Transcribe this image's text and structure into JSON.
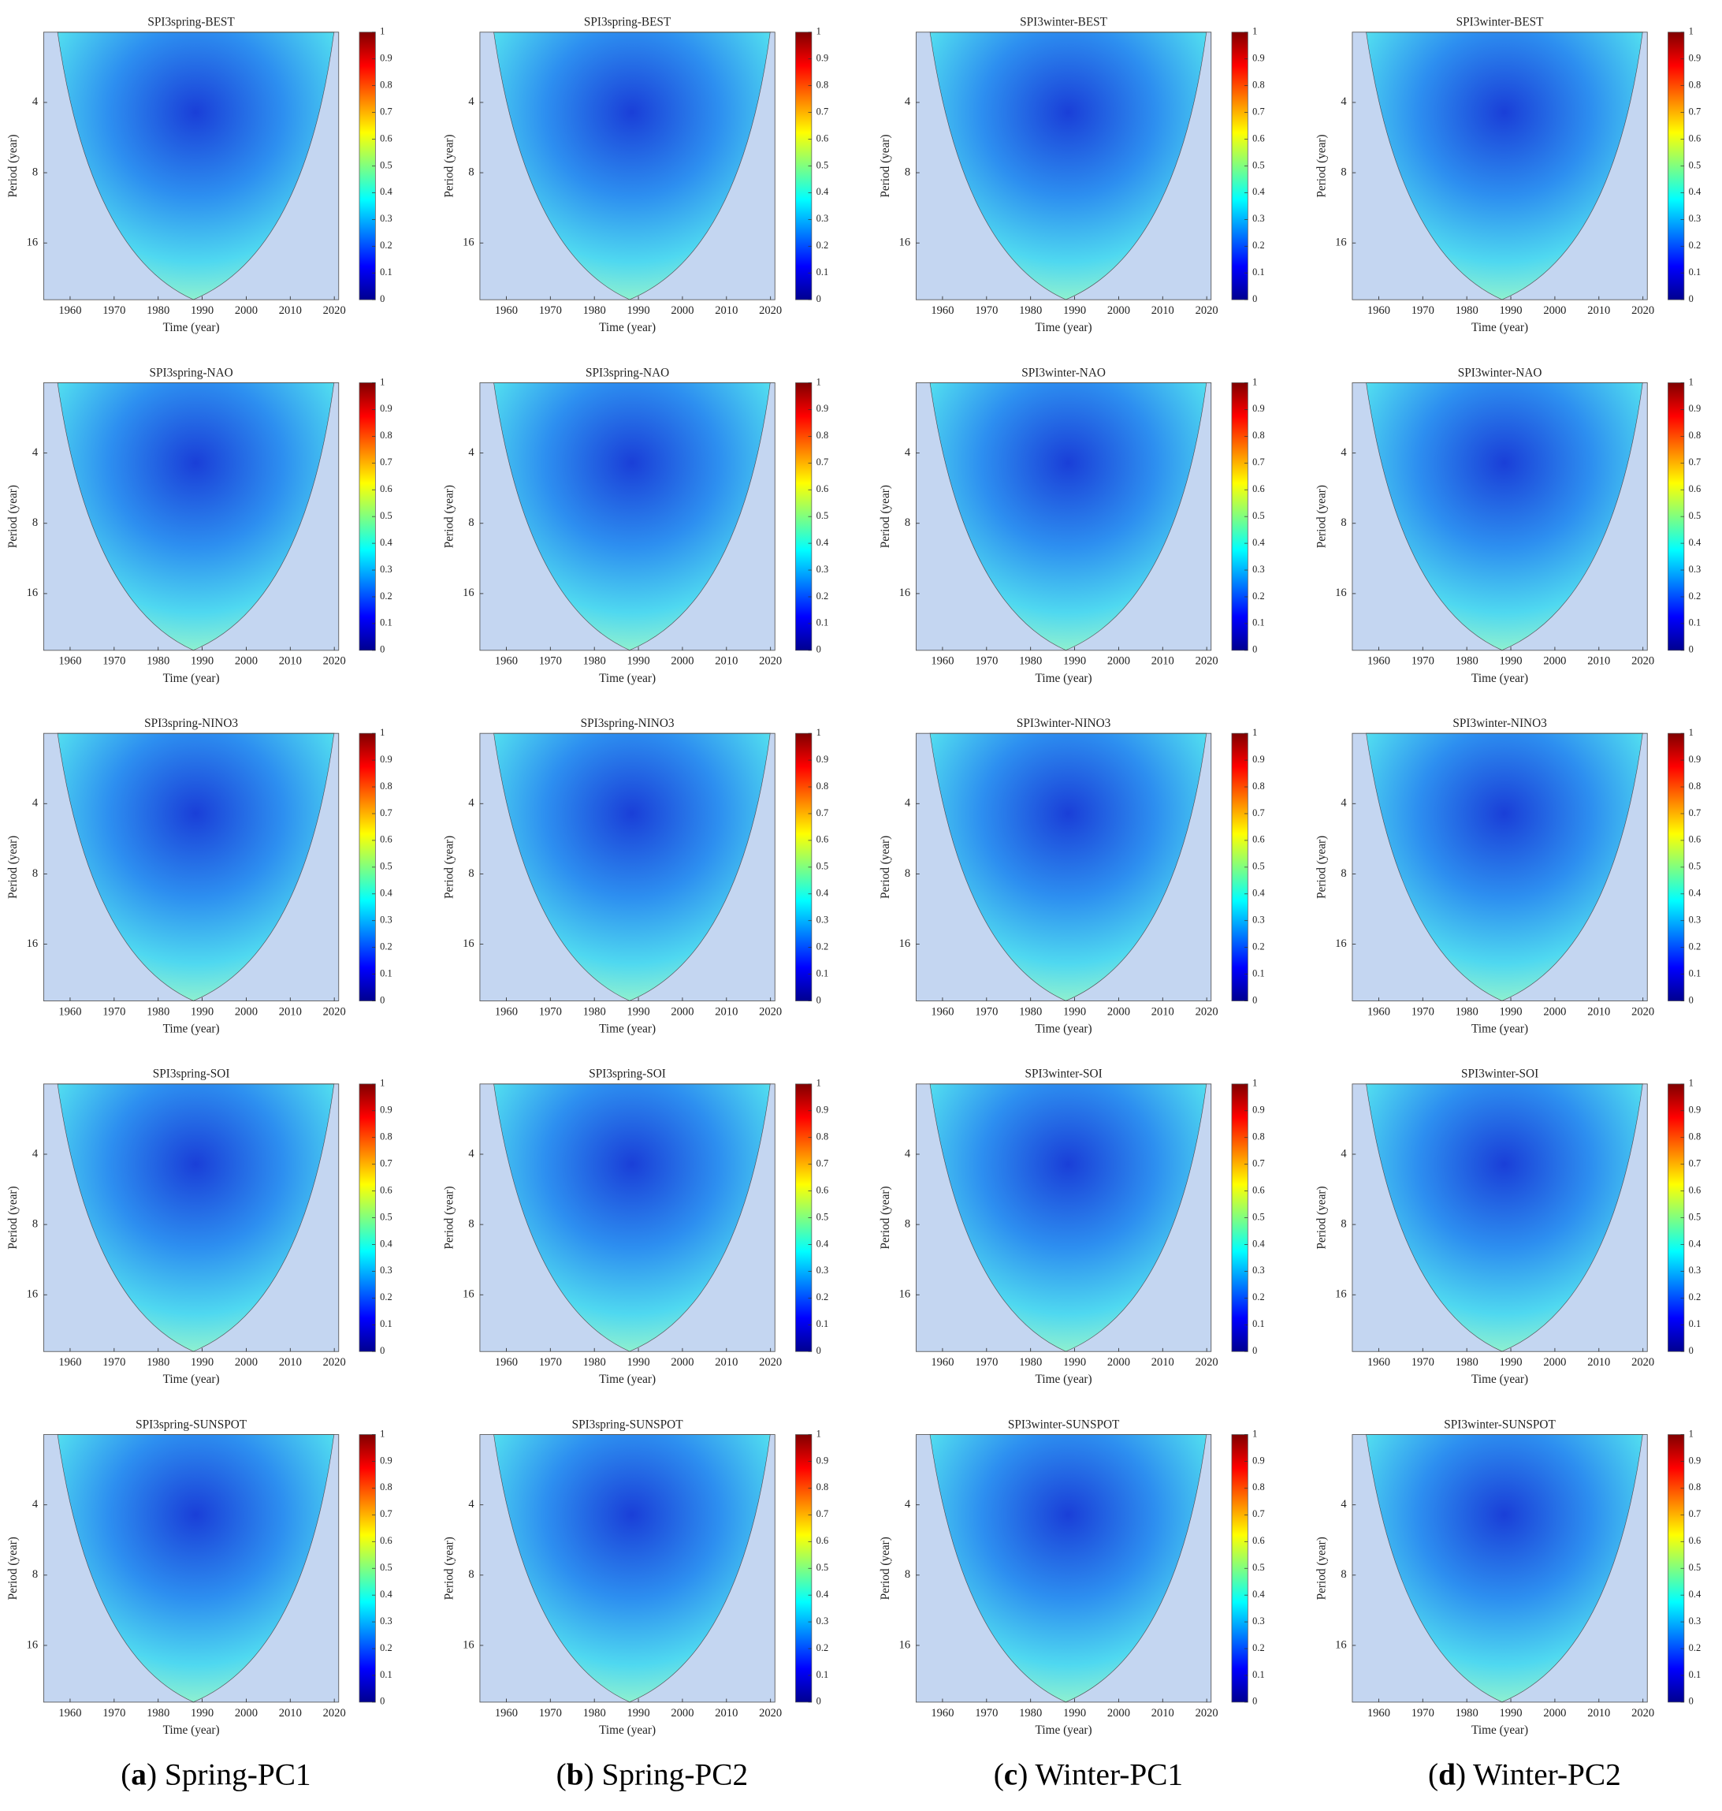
{
  "chart_data": [
    {
      "type": "heatmap",
      "title": "SPI3spring-BEST",
      "xlabel": "Time (year)",
      "ylabel": "Period (year)",
      "xlim": [
        1954,
        2021
      ],
      "xticks": [
        1960,
        1970,
        1980,
        1990,
        2000,
        2010,
        2020
      ],
      "ylim": [
        2,
        28
      ],
      "yticks": [
        4,
        8,
        16
      ],
      "y_log": true,
      "y_reversed": true,
      "colorbar_lim": [
        0,
        1
      ],
      "colorbar_ticks": [
        0,
        0.1,
        0.2,
        0.3,
        0.4,
        0.5,
        0.6,
        0.7,
        0.8,
        0.9,
        1
      ]
    },
    {
      "type": "heatmap",
      "title": "SPI3spring-NAO",
      "xlabel": "Time (year)",
      "ylabel": "Period (year)",
      "xlim": [
        1954,
        2021
      ],
      "xticks": [
        1960,
        1970,
        1980,
        1990,
        2000,
        2010,
        2020
      ],
      "ylim": [
        2,
        28
      ],
      "yticks": [
        4,
        8,
        16
      ],
      "y_log": true,
      "y_reversed": true,
      "colorbar_lim": [
        0,
        1
      ],
      "colorbar_ticks": [
        0,
        0.1,
        0.2,
        0.3,
        0.4,
        0.5,
        0.6,
        0.7,
        0.8,
        0.9,
        1
      ]
    },
    {
      "type": "heatmap",
      "title": "SPI3spring-NINO3",
      "xlabel": "Time (year)",
      "ylabel": "Period (year)",
      "xlim": [
        1954,
        2021
      ],
      "xticks": [
        1960,
        1970,
        1980,
        1990,
        2000,
        2010,
        2020
      ],
      "ylim": [
        2,
        28
      ],
      "yticks": [
        4,
        8,
        16
      ],
      "y_log": true,
      "y_reversed": true,
      "colorbar_lim": [
        0,
        1
      ],
      "colorbar_ticks": [
        0,
        0.1,
        0.2,
        0.3,
        0.4,
        0.5,
        0.6,
        0.7,
        0.8,
        0.9,
        1
      ]
    },
    {
      "type": "heatmap",
      "title": "SPI3spring-SOI",
      "xlabel": "Time (year)",
      "ylabel": "Period (year)",
      "xlim": [
        1954,
        2021
      ],
      "xticks": [
        1960,
        1970,
        1980,
        1990,
        2000,
        2010,
        2020
      ],
      "ylim": [
        2,
        28
      ],
      "yticks": [
        4,
        8,
        16
      ],
      "y_log": true,
      "y_reversed": true,
      "colorbar_lim": [
        0,
        1
      ],
      "colorbar_ticks": [
        0,
        0.1,
        0.2,
        0.3,
        0.4,
        0.5,
        0.6,
        0.7,
        0.8,
        0.9,
        1
      ]
    },
    {
      "type": "heatmap",
      "title": "SPI3spring-SUNSPOT",
      "xlabel": "Time (year)",
      "ylabel": "Period (year)",
      "xlim": [
        1954,
        2021
      ],
      "xticks": [
        1960,
        1970,
        1980,
        1990,
        2000,
        2010,
        2020
      ],
      "ylim": [
        2,
        28
      ],
      "yticks": [
        4,
        8,
        16
      ],
      "y_log": true,
      "y_reversed": true,
      "colorbar_lim": [
        0,
        1
      ],
      "colorbar_ticks": [
        0,
        0.1,
        0.2,
        0.3,
        0.4,
        0.5,
        0.6,
        0.7,
        0.8,
        0.9,
        1
      ]
    },
    {
      "type": "heatmap",
      "title": "SPI3spring-BEST",
      "xlabel": "Time (year)",
      "ylabel": "Period (year)",
      "xlim": [
        1954,
        2021
      ],
      "xticks": [
        1960,
        1970,
        1980,
        1990,
        2000,
        2010,
        2020
      ],
      "ylim": [
        2,
        28
      ],
      "yticks": [
        4,
        8,
        16
      ],
      "y_log": true,
      "y_reversed": true,
      "colorbar_lim": [
        0,
        1
      ],
      "colorbar_ticks": [
        0,
        0.1,
        0.2,
        0.3,
        0.4,
        0.5,
        0.6,
        0.7,
        0.8,
        0.9,
        1
      ]
    },
    {
      "type": "heatmap",
      "title": "SPI3spring-NAO",
      "xlabel": "Time (year)",
      "ylabel": "Period (year)",
      "xlim": [
        1954,
        2021
      ],
      "xticks": [
        1960,
        1970,
        1980,
        1990,
        2000,
        2010,
        2020
      ],
      "ylim": [
        2,
        28
      ],
      "yticks": [
        4,
        8,
        16
      ],
      "y_log": true,
      "y_reversed": true,
      "colorbar_lim": [
        0,
        1
      ],
      "colorbar_ticks": [
        0,
        0.1,
        0.2,
        0.3,
        0.4,
        0.5,
        0.6,
        0.7,
        0.8,
        0.9,
        1
      ]
    },
    {
      "type": "heatmap",
      "title": "SPI3spring-NINO3",
      "xlabel": "Time (year)",
      "ylabel": "Period (year)",
      "xlim": [
        1954,
        2021
      ],
      "xticks": [
        1960,
        1970,
        1980,
        1990,
        2000,
        2010,
        2020
      ],
      "ylim": [
        2,
        28
      ],
      "yticks": [
        4,
        8,
        16
      ],
      "y_log": true,
      "y_reversed": true,
      "colorbar_lim": [
        0,
        1
      ],
      "colorbar_ticks": [
        0,
        0.1,
        0.2,
        0.3,
        0.4,
        0.5,
        0.6,
        0.7,
        0.8,
        0.9,
        1
      ]
    },
    {
      "type": "heatmap",
      "title": "SPI3spring-SOI",
      "xlabel": "Time (year)",
      "ylabel": "Period (year)",
      "xlim": [
        1954,
        2021
      ],
      "xticks": [
        1960,
        1970,
        1980,
        1990,
        2000,
        2010,
        2020
      ],
      "ylim": [
        2,
        28
      ],
      "yticks": [
        4,
        8,
        16
      ],
      "y_log": true,
      "y_reversed": true,
      "colorbar_lim": [
        0,
        1
      ],
      "colorbar_ticks": [
        0,
        0.1,
        0.2,
        0.3,
        0.4,
        0.5,
        0.6,
        0.7,
        0.8,
        0.9,
        1
      ]
    },
    {
      "type": "heatmap",
      "title": "SPI3spring-SUNSPOT",
      "xlabel": "Time (year)",
      "ylabel": "Period (year)",
      "xlim": [
        1954,
        2021
      ],
      "xticks": [
        1960,
        1970,
        1980,
        1990,
        2000,
        2010,
        2020
      ],
      "ylim": [
        2,
        28
      ],
      "yticks": [
        4,
        8,
        16
      ],
      "y_log": true,
      "y_reversed": true,
      "colorbar_lim": [
        0,
        1
      ],
      "colorbar_ticks": [
        0,
        0.1,
        0.2,
        0.3,
        0.4,
        0.5,
        0.6,
        0.7,
        0.8,
        0.9,
        1
      ]
    },
    {
      "type": "heatmap",
      "title": "SPI3winter-BEST",
      "xlabel": "Time (year)",
      "ylabel": "Period (year)",
      "xlim": [
        1954,
        2021
      ],
      "xticks": [
        1960,
        1970,
        1980,
        1990,
        2000,
        2010,
        2020
      ],
      "ylim": [
        2,
        28
      ],
      "yticks": [
        4,
        8,
        16
      ],
      "y_log": true,
      "y_reversed": true,
      "colorbar_lim": [
        0,
        1
      ],
      "colorbar_ticks": [
        0,
        0.1,
        0.2,
        0.3,
        0.4,
        0.5,
        0.6,
        0.7,
        0.8,
        0.9,
        1
      ]
    },
    {
      "type": "heatmap",
      "title": "SPI3winter-NAO",
      "xlabel": "Time (year)",
      "ylabel": "Period (year)",
      "xlim": [
        1954,
        2021
      ],
      "xticks": [
        1960,
        1970,
        1980,
        1990,
        2000,
        2010,
        2020
      ],
      "ylim": [
        2,
        28
      ],
      "yticks": [
        4,
        8,
        16
      ],
      "y_log": true,
      "y_reversed": true,
      "colorbar_lim": [
        0,
        1
      ],
      "colorbar_ticks": [
        0,
        0.1,
        0.2,
        0.3,
        0.4,
        0.5,
        0.6,
        0.7,
        0.8,
        0.9,
        1
      ]
    },
    {
      "type": "heatmap",
      "title": "SPI3winter-NINO3",
      "xlabel": "Time (year)",
      "ylabel": "Period (year)",
      "xlim": [
        1954,
        2021
      ],
      "xticks": [
        1960,
        1970,
        1980,
        1990,
        2000,
        2010,
        2020
      ],
      "ylim": [
        2,
        28
      ],
      "yticks": [
        4,
        8,
        16
      ],
      "y_log": true,
      "y_reversed": true,
      "colorbar_lim": [
        0,
        1
      ],
      "colorbar_ticks": [
        0,
        0.1,
        0.2,
        0.3,
        0.4,
        0.5,
        0.6,
        0.7,
        0.8,
        0.9,
        1
      ]
    },
    {
      "type": "heatmap",
      "title": "SPI3winter-SOI",
      "xlabel": "Time (year)",
      "ylabel": "Period (year)",
      "xlim": [
        1954,
        2021
      ],
      "xticks": [
        1960,
        1970,
        1980,
        1990,
        2000,
        2010,
        2020
      ],
      "ylim": [
        2,
        28
      ],
      "yticks": [
        4,
        8,
        16
      ],
      "y_log": true,
      "y_reversed": true,
      "colorbar_lim": [
        0,
        1
      ],
      "colorbar_ticks": [
        0,
        0.1,
        0.2,
        0.3,
        0.4,
        0.5,
        0.6,
        0.7,
        0.8,
        0.9,
        1
      ]
    },
    {
      "type": "heatmap",
      "title": "SPI3winter-SUNSPOT",
      "xlabel": "Time (year)",
      "ylabel": "Period (year)",
      "xlim": [
        1954,
        2021
      ],
      "xticks": [
        1960,
        1970,
        1980,
        1990,
        2000,
        2010,
        2020
      ],
      "ylim": [
        2,
        28
      ],
      "yticks": [
        4,
        8,
        16
      ],
      "y_log": true,
      "y_reversed": true,
      "colorbar_lim": [
        0,
        1
      ],
      "colorbar_ticks": [
        0,
        0.1,
        0.2,
        0.3,
        0.4,
        0.5,
        0.6,
        0.7,
        0.8,
        0.9,
        1
      ]
    },
    {
      "type": "heatmap",
      "title": "SPI3winter-BEST",
      "xlabel": "Time (year)",
      "ylabel": "Period (year)",
      "xlim": [
        1954,
        2021
      ],
      "xticks": [
        1960,
        1970,
        1980,
        1990,
        2000,
        2010,
        2020
      ],
      "ylim": [
        2,
        28
      ],
      "yticks": [
        4,
        8,
        16
      ],
      "y_log": true,
      "y_reversed": true,
      "colorbar_lim": [
        0,
        1
      ],
      "colorbar_ticks": [
        0,
        0.1,
        0.2,
        0.3,
        0.4,
        0.5,
        0.6,
        0.7,
        0.8,
        0.9,
        1
      ]
    },
    {
      "type": "heatmap",
      "title": "SPI3winter-NAO",
      "xlabel": "Time (year)",
      "ylabel": "Period (year)",
      "xlim": [
        1954,
        2021
      ],
      "xticks": [
        1960,
        1970,
        1980,
        1990,
        2000,
        2010,
        2020
      ],
      "ylim": [
        2,
        28
      ],
      "yticks": [
        4,
        8,
        16
      ],
      "y_log": true,
      "y_reversed": true,
      "colorbar_lim": [
        0,
        1
      ],
      "colorbar_ticks": [
        0,
        0.1,
        0.2,
        0.3,
        0.4,
        0.5,
        0.6,
        0.7,
        0.8,
        0.9,
        1
      ]
    },
    {
      "type": "heatmap",
      "title": "SPI3winter-NINO3",
      "xlabel": "Time (year)",
      "ylabel": "Period (year)",
      "xlim": [
        1954,
        2021
      ],
      "xticks": [
        1960,
        1970,
        1980,
        1990,
        2000,
        2010,
        2020
      ],
      "ylim": [
        2,
        28
      ],
      "yticks": [
        4,
        8,
        16
      ],
      "y_log": true,
      "y_reversed": true,
      "colorbar_lim": [
        0,
        1
      ],
      "colorbar_ticks": [
        0,
        0.1,
        0.2,
        0.3,
        0.4,
        0.5,
        0.6,
        0.7,
        0.8,
        0.9,
        1
      ]
    },
    {
      "type": "heatmap",
      "title": "SPI3winter-SOI",
      "xlabel": "Time (year)",
      "ylabel": "Period (year)",
      "xlim": [
        1954,
        2021
      ],
      "xticks": [
        1960,
        1970,
        1980,
        1990,
        2000,
        2010,
        2020
      ],
      "ylim": [
        2,
        28
      ],
      "yticks": [
        4,
        8,
        16
      ],
      "y_log": true,
      "y_reversed": true,
      "colorbar_lim": [
        0,
        1
      ],
      "colorbar_ticks": [
        0,
        0.1,
        0.2,
        0.3,
        0.4,
        0.5,
        0.6,
        0.7,
        0.8,
        0.9,
        1
      ]
    },
    {
      "type": "heatmap",
      "title": "SPI3winter-SUNSPOT",
      "xlabel": "Time (year)",
      "ylabel": "Period (year)",
      "xlim": [
        1954,
        2021
      ],
      "xticks": [
        1960,
        1970,
        1980,
        1990,
        2000,
        2010,
        2020
      ],
      "ylim": [
        2,
        28
      ],
      "yticks": [
        4,
        8,
        16
      ],
      "y_log": true,
      "y_reversed": true,
      "colorbar_lim": [
        0,
        1
      ],
      "colorbar_ticks": [
        0,
        0.1,
        0.2,
        0.3,
        0.4,
        0.5,
        0.6,
        0.7,
        0.8,
        0.9,
        1
      ]
    }
  ],
  "captions": [
    {
      "open": "(",
      "letter": "a",
      "rest": ") Spring-PC1"
    },
    {
      "open": "(",
      "letter": "b",
      "rest": ") Spring-PC2"
    },
    {
      "open": "(",
      "letter": "c",
      "rest": ") Winter-PC1"
    },
    {
      "open": "(",
      "letter": "d",
      "rest": ") Winter-PC2"
    }
  ]
}
